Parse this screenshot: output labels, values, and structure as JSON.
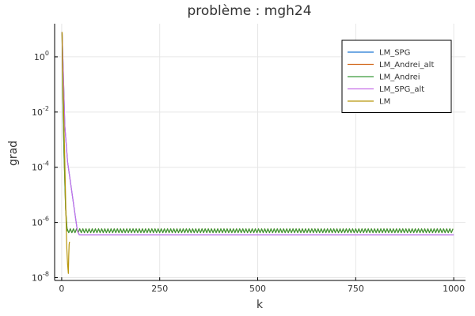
{
  "chart_data": {
    "type": "line",
    "title": "problème : mgh24",
    "xlabel": "k",
    "ylabel": "grad",
    "xlim": [
      -18,
      1030
    ],
    "ylim": [
      -8.1,
      1.2
    ],
    "yscale": "log10",
    "x_ticks": [
      0,
      250,
      500,
      750,
      1000
    ],
    "x_tick_labels": [
      "0",
      "250",
      "500",
      "750",
      "1000"
    ],
    "y_ticks": [
      0,
      -2,
      -4,
      -6,
      -8
    ],
    "y_tick_labels": [
      {
        "base": "10",
        "exp": "0"
      },
      {
        "base": "10",
        "exp": "-2"
      },
      {
        "base": "10",
        "exp": "-4"
      },
      {
        "base": "10",
        "exp": "-6"
      },
      {
        "base": "10",
        "exp": "-8"
      }
    ],
    "grid": true,
    "legend_position": "top-right",
    "series": [
      {
        "name": "LM_SPG",
        "color": "#1f77d4",
        "points": [
          [
            1,
            0.9
          ],
          [
            4,
            -0.5
          ],
          [
            8,
            -2.5
          ],
          [
            15,
            -3.8
          ],
          [
            25,
            -4.8
          ],
          [
            40,
            -6.3
          ],
          [
            45,
            -6.45
          ],
          [
            1000,
            -6.45
          ]
        ]
      },
      {
        "name": "LM_Andrei_alt",
        "color": "#d2691e",
        "points": [
          [
            1,
            0.9
          ],
          [
            3,
            -1.5
          ],
          [
            6,
            -3.5
          ],
          [
            10,
            -5.5
          ],
          [
            14,
            -6.3
          ]
        ],
        "oscillation": {
          "from": 14,
          "to": 1000,
          "period": 8,
          "low": -6.37,
          "high": -6.23
        }
      },
      {
        "name": "LM_Andrei",
        "color": "#3b9a3b",
        "points": [
          [
            1,
            0.9
          ],
          [
            3,
            -1.5
          ],
          [
            6,
            -3.5
          ],
          [
            10,
            -5.5
          ],
          [
            14,
            -6.3
          ]
        ],
        "oscillation": {
          "from": 14,
          "to": 1000,
          "period": 8,
          "low": -6.37,
          "high": -6.23
        }
      },
      {
        "name": "LM_SPG_alt",
        "color": "#c76fe8",
        "points": [
          [
            1,
            0.9
          ],
          [
            4,
            -0.5
          ],
          [
            8,
            -2.5
          ],
          [
            15,
            -3.8
          ],
          [
            25,
            -4.8
          ],
          [
            40,
            -6.3
          ],
          [
            45,
            -6.45
          ],
          [
            1000,
            -6.45
          ]
        ]
      },
      {
        "name": "LM",
        "color": "#b8960c",
        "points": [
          [
            1,
            0.9
          ],
          [
            2,
            -0.2
          ],
          [
            5,
            -2.0
          ],
          [
            8,
            -3.8
          ],
          [
            11,
            -5.8
          ],
          [
            13,
            -6.9
          ],
          [
            15,
            -7.5
          ],
          [
            17,
            -7.85
          ],
          [
            18,
            -7.2
          ],
          [
            19,
            -6.8
          ],
          [
            20,
            -6.7
          ]
        ]
      }
    ]
  }
}
